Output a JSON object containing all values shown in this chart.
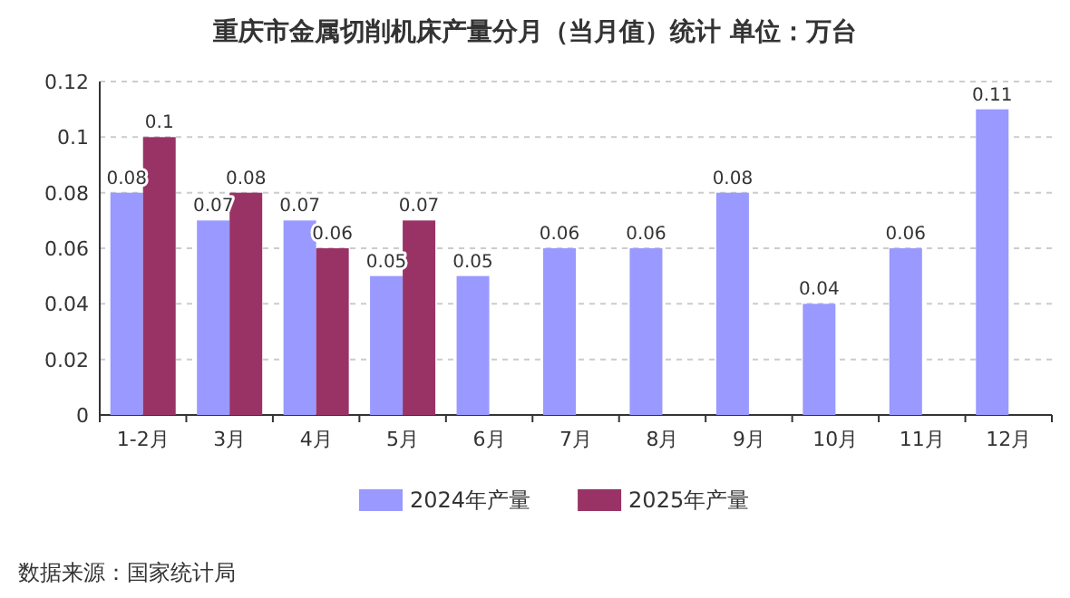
{
  "chart_data": {
    "type": "bar",
    "title": "重庆市金属切削机床产量分月（当月值）统计  单位：万台",
    "categories": [
      "1-2月",
      "3月",
      "4月",
      "5月",
      "6月",
      "7月",
      "8月",
      "9月",
      "10月",
      "11月",
      "12月"
    ],
    "series": [
      {
        "name": "2024年产量",
        "color": "#9999ff",
        "values": [
          0.08,
          0.07,
          0.07,
          0.05,
          0.05,
          0.06,
          0.06,
          0.08,
          0.04,
          0.06,
          0.11
        ]
      },
      {
        "name": "2025年产量",
        "color": "#993366",
        "values": [
          0.1,
          0.08,
          0.06,
          0.07,
          null,
          null,
          null,
          null,
          null,
          null,
          null
        ]
      }
    ],
    "ylim": [
      0,
      0.12
    ],
    "yticks": [
      0,
      0.02,
      0.04,
      0.06,
      0.08,
      0.1,
      0.12
    ],
    "grid": "y",
    "data_labels": true,
    "legend": "bottom",
    "annotations": [
      "数据来源：国家统计局"
    ]
  }
}
